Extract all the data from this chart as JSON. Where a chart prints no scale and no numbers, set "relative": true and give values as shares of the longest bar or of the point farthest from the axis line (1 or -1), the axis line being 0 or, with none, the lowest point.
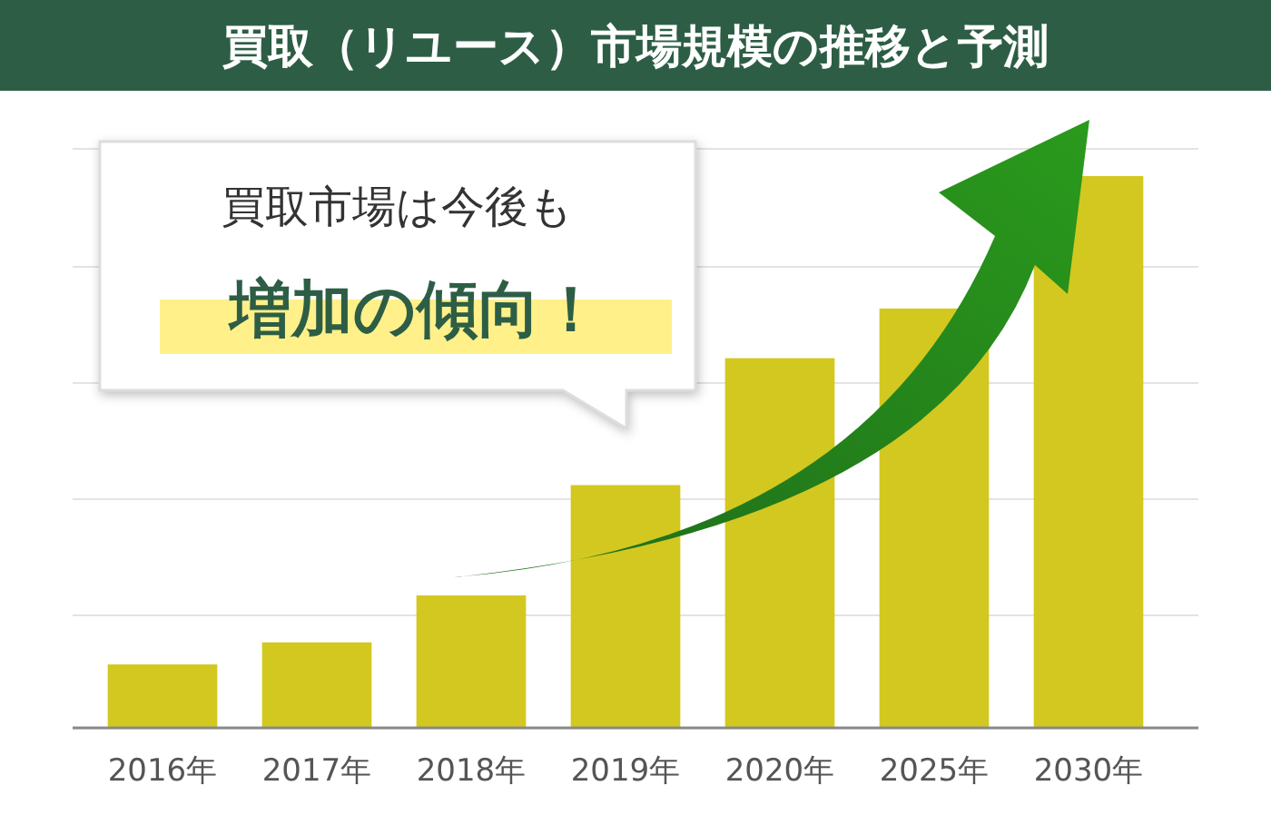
{
  "chart_data": {
    "type": "bar",
    "title": "買取（リユース）市場規模の推移と予測",
    "relative": true,
    "categories": [
      "2016年",
      "2017年",
      "2018年",
      "2019年",
      "2020年",
      "2025年",
      "2030年"
    ],
    "values": [
      0.115,
      0.155,
      0.24,
      0.44,
      0.67,
      0.76,
      1
    ],
    "color": "#d3c81f",
    "annotations": [
      "買取市場は今後も",
      "増加の傾向！"
    ]
  }
}
